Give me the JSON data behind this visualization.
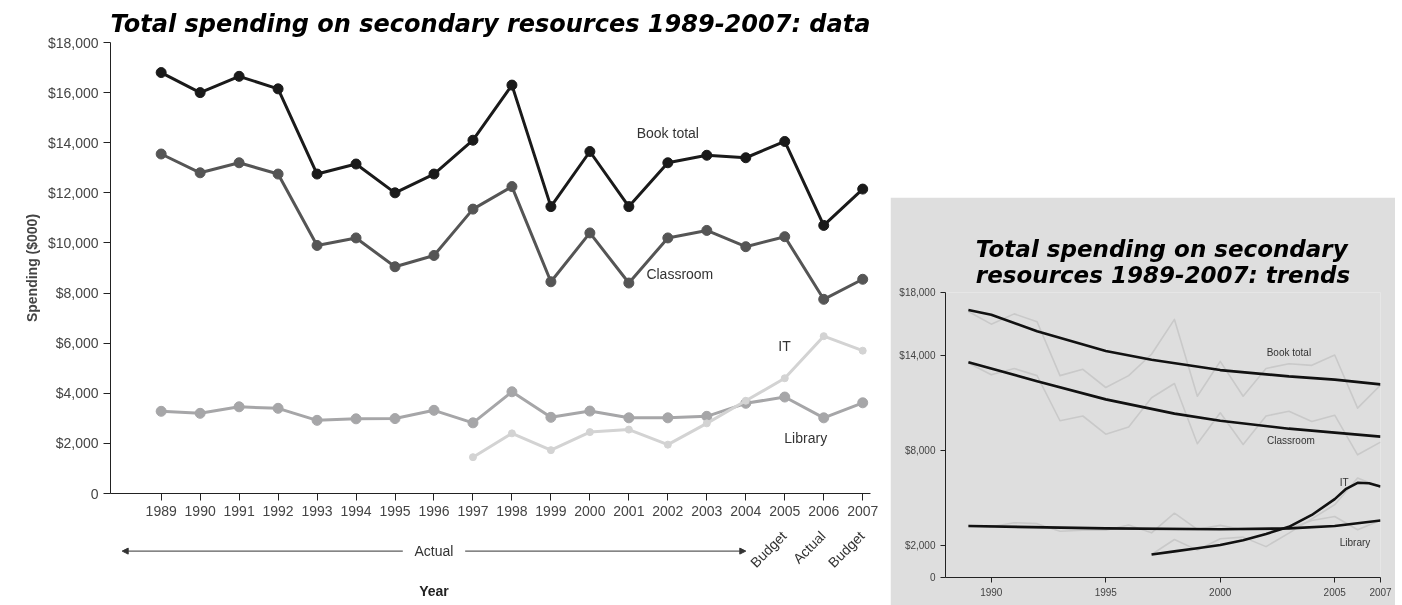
{
  "chart_data": [
    {
      "type": "line",
      "title": "Total spending on secondary resources 1989-2007: data",
      "xlabel": "Year",
      "ylabel": "Spending ($000)",
      "categories": [
        "1989",
        "1990",
        "1991",
        "1992",
        "1993",
        "1994",
        "1995",
        "1996",
        "1997",
        "1998",
        "1999",
        "2000",
        "2001",
        "2002",
        "2003",
        "2004",
        "2005",
        "2006",
        "2007"
      ],
      "series": [
        {
          "name": "Book total",
          "color": "#1a1a1a",
          "values": [
            16800,
            16000,
            16650,
            16150,
            12750,
            13150,
            12000,
            12750,
            14100,
            16300,
            11450,
            13650,
            11450,
            13200,
            13500,
            13400,
            14050,
            10700,
            12150
          ]
        },
        {
          "name": "Classroom",
          "color": "#555555",
          "values": [
            13550,
            12800,
            13200,
            12750,
            9900,
            10200,
            9050,
            9500,
            11350,
            12250,
            8450,
            10400,
            8400,
            10200,
            10500,
            9850,
            10250,
            7750,
            8550
          ]
        },
        {
          "name": "Library",
          "color": "#a6a6a8",
          "values": [
            3280,
            3200,
            3460,
            3400,
            2920,
            2980,
            2990,
            3320,
            2820,
            4060,
            3040,
            3290,
            3020,
            3020,
            3080,
            3600,
            3850,
            3020,
            3620
          ]
        },
        {
          "name": "IT",
          "color": "#d3d3d3",
          "values": [
            null,
            null,
            null,
            null,
            null,
            null,
            null,
            null,
            1450,
            2400,
            1730,
            2450,
            2550,
            1950,
            2800,
            3700,
            4600,
            6280,
            5700
          ]
        }
      ],
      "ylim": [
        0,
        18000
      ],
      "yticks": [
        0,
        {
          "value": 2000,
          "label": "$2,000"
        },
        {
          "value": 4000,
          "label": "$4,000"
        },
        {
          "value": 6000,
          "label": "$6,000"
        },
        {
          "value": 8000,
          "label": "$8,000"
        },
        {
          "value": 10000,
          "label": "$10,000"
        },
        {
          "value": 12000,
          "label": "$12,000"
        },
        {
          "value": 14000,
          "label": "$14,000"
        },
        {
          "value": 16000,
          "label": "$16,000"
        },
        {
          "value": 18000,
          "label": "$18,000"
        }
      ],
      "annotations": [
        "Actual",
        "Budget",
        "Actual",
        "Budget"
      ],
      "marker": "circle",
      "line_style": "solid",
      "grid": false
    },
    {
      "type": "line",
      "title": "Total spending on secondary resources 1989-2007: trends",
      "series": [
        {
          "color": "#c9c9c9",
          "x": [
            1989,
            1990,
            1991,
            1992,
            1993,
            1994,
            1995,
            1996,
            1997,
            1998,
            1999,
            2000,
            2001,
            2002,
            2003,
            2004,
            2005,
            2006,
            2007
          ],
          "values": [
            16800,
            16000,
            16650,
            16150,
            12750,
            13150,
            12000,
            12750,
            14100,
            16300,
            11450,
            13650,
            11450,
            13200,
            13500,
            13400,
            14050,
            10700,
            12150
          ]
        },
        {
          "color": "#c9c9c9",
          "x": [
            1989,
            1990,
            1991,
            1992,
            1993,
            1994,
            1995,
            1996,
            1997,
            1998,
            1999,
            2000,
            2001,
            2002,
            2003,
            2004,
            2005,
            2006,
            2007
          ],
          "values": [
            13550,
            12800,
            13200,
            12750,
            9900,
            10200,
            9050,
            9500,
            11350,
            12250,
            8450,
            10400,
            8400,
            10200,
            10500,
            9850,
            10250,
            7750,
            8550
          ]
        },
        {
          "color": "#c9c9c9",
          "x": [
            1989,
            1990,
            1991,
            1992,
            1993,
            1994,
            1995,
            1996,
            1997,
            1998,
            1999,
            2000,
            2001,
            2002,
            2003,
            2004,
            2005,
            2006,
            2007
          ],
          "values": [
            3280,
            3200,
            3460,
            3400,
            2920,
            2980,
            2990,
            3320,
            2820,
            4060,
            3040,
            3290,
            3020,
            3020,
            3080,
            3600,
            3850,
            3020,
            3620
          ]
        },
        {
          "color": "#c9c9c9",
          "x": [
            1997,
            1998,
            1999,
            2000,
            2001,
            2002,
            2003,
            2004,
            2005,
            2006,
            2007
          ],
          "values": [
            1450,
            2400,
            1730,
            2450,
            2550,
            1950,
            2800,
            3700,
            4600,
            6280,
            5700
          ]
        },
        {
          "name": "Book total",
          "color": "#111111",
          "x": [
            1989,
            1990,
            1992,
            1995,
            1997,
            2000,
            2003,
            2005,
            2007
          ],
          "values": [
            16900,
            16600,
            15550,
            14300,
            13750,
            13100,
            12700,
            12500,
            12200
          ]
        },
        {
          "name": "Classroom",
          "color": "#111111",
          "x": [
            1989,
            1992,
            1995,
            1998,
            2000,
            2003,
            2007
          ],
          "values": [
            13600,
            12400,
            11250,
            10350,
            9900,
            9400,
            8900
          ]
        },
        {
          "name": "Library",
          "color": "#111111",
          "x": [
            1989,
            1995,
            2000,
            2003,
            2005,
            2007
          ],
          "values": [
            3250,
            3100,
            3050,
            3100,
            3250,
            3600
          ]
        },
        {
          "name": "IT",
          "color": "#111111",
          "x": [
            1997,
            1998,
            1999,
            2000,
            2001,
            2002,
            2003,
            2004,
            2005,
            2005.5,
            2006,
            2006.5,
            2007
          ],
          "values": [
            1450,
            1650,
            1850,
            2050,
            2350,
            2750,
            3200,
            3950,
            4950,
            5600,
            5980,
            5950,
            5750
          ]
        }
      ],
      "xlim": [
        1988,
        2007
      ],
      "xticks": [
        1990,
        1995,
        2000,
        2005,
        2007
      ],
      "ylim": [
        0,
        18000
      ],
      "yticks": [
        0,
        {
          "value": 2000,
          "label": "$2,000"
        },
        {
          "value": 8000,
          "label": "$8,000"
        },
        {
          "value": 14000,
          "label": "$14,000"
        },
        {
          "value": 18000,
          "label": "$18,000"
        }
      ],
      "marker": "none",
      "line_style": "solid",
      "grid": false
    }
  ]
}
